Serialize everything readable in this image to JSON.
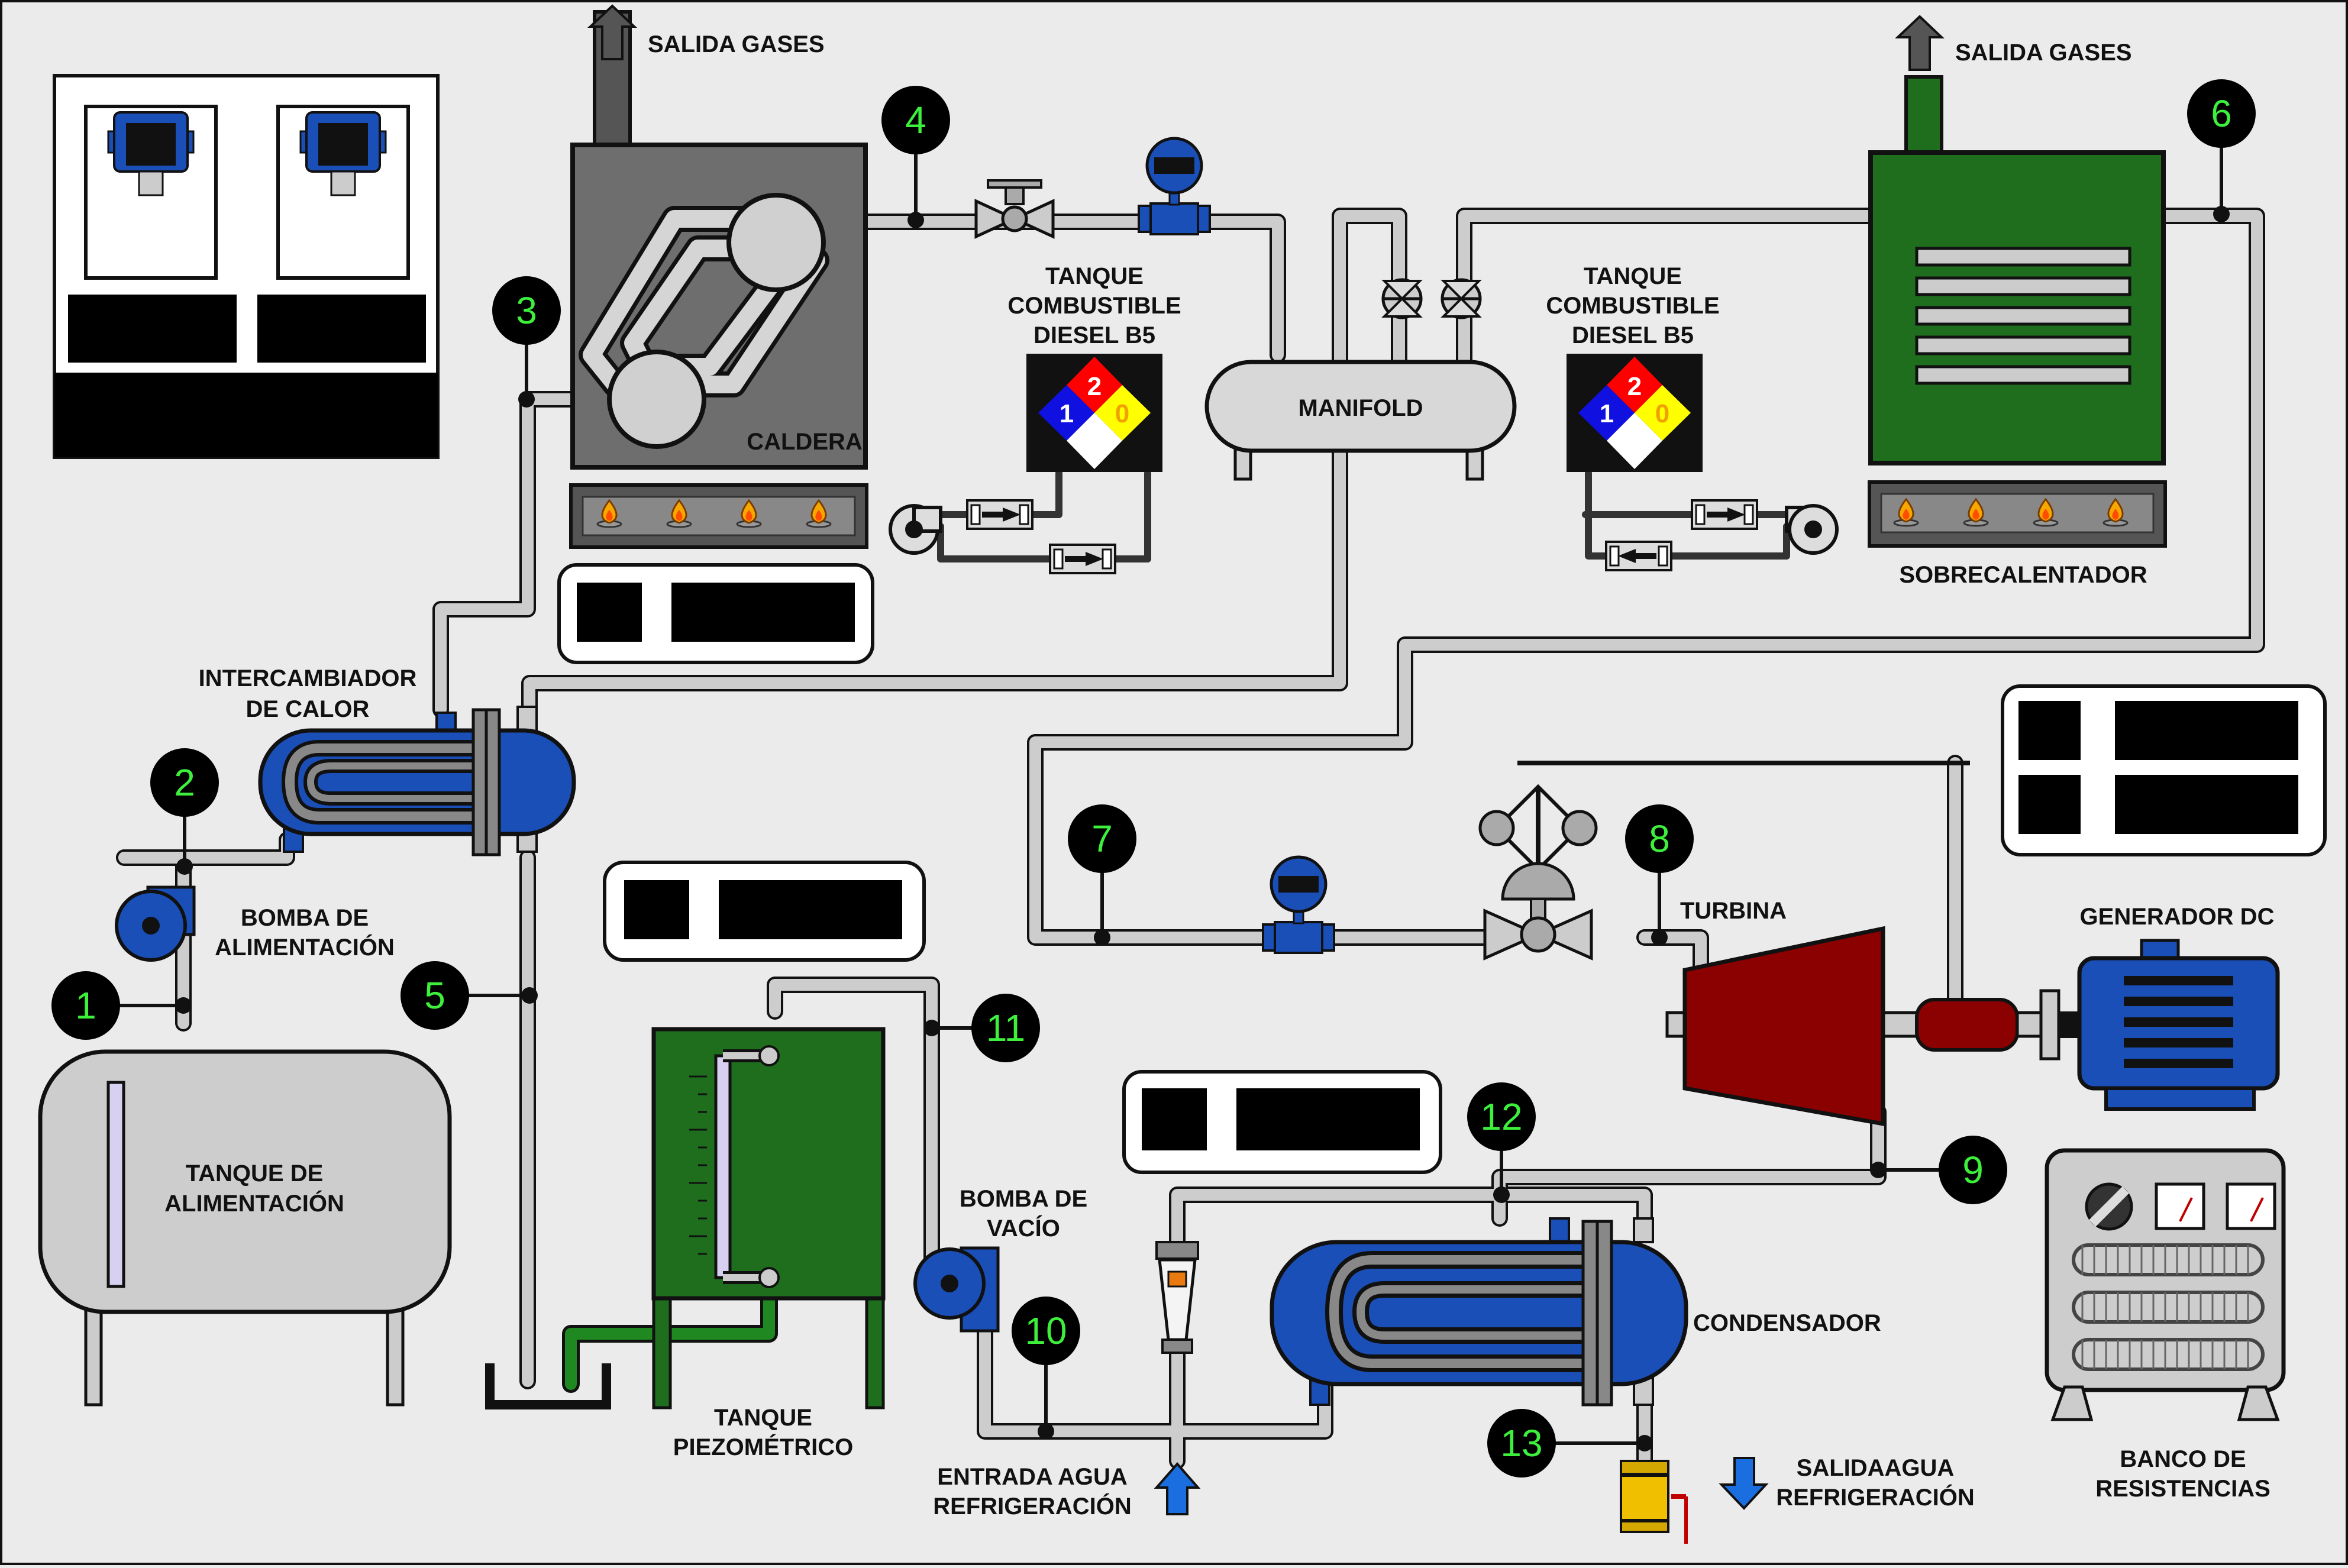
{
  "labels": {
    "salida_gases_1": "SALIDA GASES",
    "salida_gases_2": "SALIDA GASES",
    "caldera": "CALDERA",
    "tanque_combustible_1": [
      "TANQUE",
      "COMBUSTIBLE",
      "DIESEL B5"
    ],
    "tanque_combustible_2": [
      "TANQUE",
      "COMBUSTIBLE",
      "DIESEL B5"
    ],
    "manifold": "MANIFOLD",
    "sobrecalentador": "SOBRECALENTADOR",
    "intercambiador": [
      "INTERCAMBIADOR",
      "DE CALOR"
    ],
    "bomba_alimentacion": [
      "BOMBA DE",
      "ALIMENTACIÓN"
    ],
    "tanque_alimentacion": [
      "TANQUE DE",
      "ALIMENTACIÓN"
    ],
    "tanque_piezometrico": [
      "TANQUE",
      "PIEZOMÉTRICO"
    ],
    "bomba_vacio": [
      "BOMBA DE",
      "VACÍO"
    ],
    "entrada_agua": [
      "ENTRADA AGUA",
      "REFRIGERACIÓN"
    ],
    "salida_agua": [
      "SALIDAAGUA",
      "REFRIGERACIÓN"
    ],
    "condensador": "CONDENSADOR",
    "turbina": "TURBINA",
    "generador": "GENERADOR DC",
    "banco_resistencias": [
      "BANCO DE",
      "RESISTENCIAS"
    ]
  },
  "nfpa": {
    "health": "1",
    "flammability": "2",
    "instability": "0"
  },
  "points": [
    "1",
    "2",
    "3",
    "4",
    "5",
    "6",
    "7",
    "8",
    "9",
    "10",
    "11",
    "12",
    "13"
  ],
  "colors": {
    "background": "#ebebeb",
    "pipe": "#c8c8c8",
    "boiler": "#6e6e6e",
    "superheater": "#1e6e1e",
    "exchanger": "#1a4fb8",
    "turbine": "#8b0000",
    "point_marker": "#000000",
    "point_text": "#3cf03c",
    "nfpa_blue": "#1010e0",
    "nfpa_red": "#ff0000",
    "nfpa_yellow": "#ffff00"
  },
  "icons": [
    "flame-icon",
    "valve-icon",
    "flow-meter-icon",
    "pressure-transmitter-icon",
    "arrow-up-icon",
    "arrow-down-icon",
    "pump-icon"
  ]
}
